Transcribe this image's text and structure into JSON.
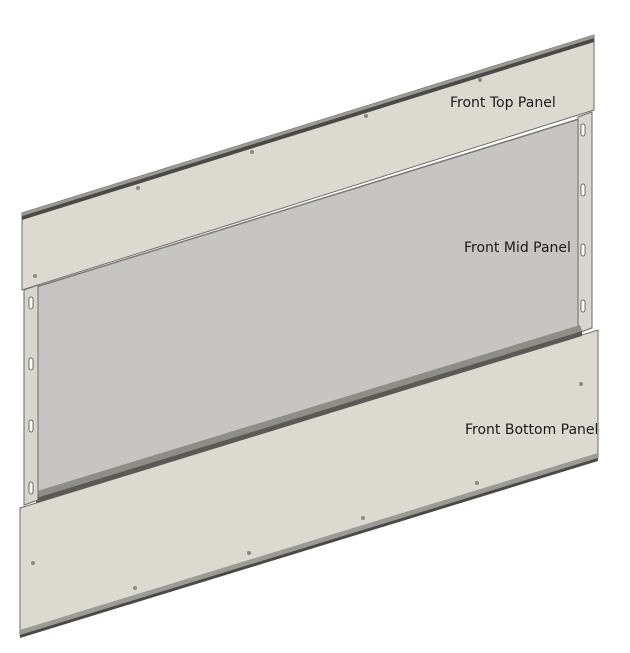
{
  "labels": {
    "top": "Front Top Panel",
    "mid": "Front Mid Panel",
    "bottom": "Front Bottom Panel"
  },
  "colors": {
    "panel_face": "#dcd9d0",
    "mid_face": "#c6c5c1",
    "edge": "#6e6c68",
    "rail": "#a09e98",
    "hole": "#8a8883"
  }
}
